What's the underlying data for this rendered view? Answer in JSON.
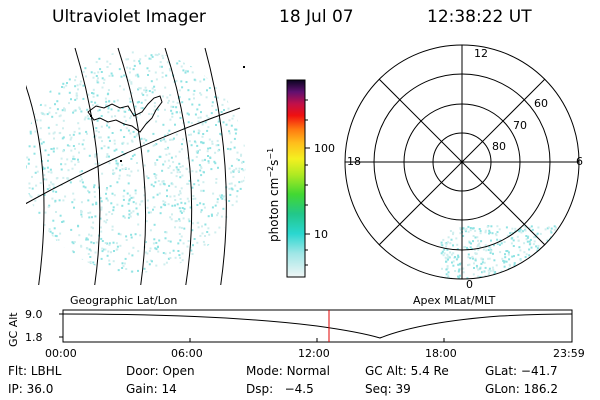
{
  "header": {
    "instrument": "Ultraviolet Imager",
    "date": "18 Jul 07",
    "time": "12:38:22 UT"
  },
  "colorbar": {
    "unit_label": "photon cm",
    "unit_exp1": "−2",
    "unit_mid": "s",
    "unit_exp2": "−1",
    "ticks": [
      "100",
      "10"
    ]
  },
  "polar_plot": {
    "mlt_labels": [
      "12",
      "18",
      "6",
      "0"
    ],
    "lat_labels": [
      "60",
      "70",
      "80"
    ]
  },
  "panel_labels": {
    "left": "Geographic Lat/Lon",
    "right": "Apex MLat/MLT"
  },
  "altitude_plot": {
    "ylabel": "GC Alt",
    "y_ticks": [
      "9.0",
      "1.8"
    ],
    "x_ticks": [
      "00:00",
      "06:00",
      "12:00",
      "18:00",
      "23:59"
    ],
    "current_time_color": "#e00000"
  },
  "info": {
    "row1": [
      {
        "label": "Flt:",
        "value": "LBHL"
      },
      {
        "label": "Door:",
        "value": "Open"
      },
      {
        "label": "Mode:",
        "value": "Normal"
      },
      {
        "label": "GC Alt:",
        "value": "5.4 Re"
      },
      {
        "label": "GLat:",
        "value": "−41.7"
      }
    ],
    "row2": [
      {
        "label": "IP:",
        "value": "36.0"
      },
      {
        "label": "Gain:",
        "value": "14"
      },
      {
        "label": "Dsp:",
        "value": "  −4.5"
      },
      {
        "label": "Seq:",
        "value": "39"
      },
      {
        "label": "GLon:",
        "value": "186.2"
      }
    ]
  },
  "colors": {
    "speckle": "#8fe3e3",
    "speckle_light": "#cfeeee"
  }
}
